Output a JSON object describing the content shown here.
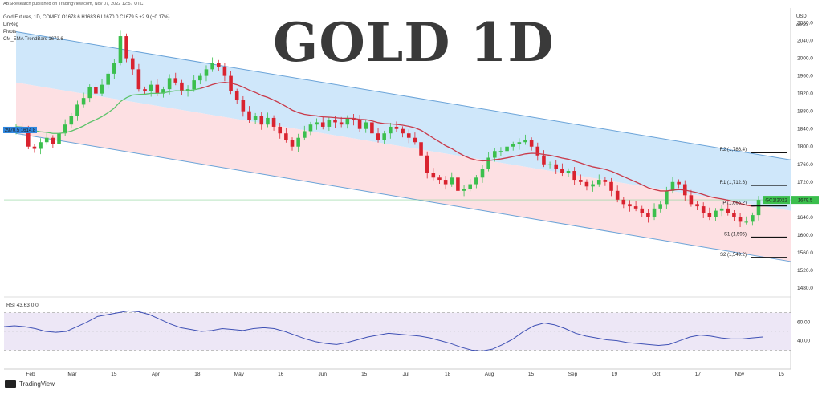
{
  "header": {
    "publisher": "ABSResearch published on TradingView.com, Nov 07, 2022 12:57 UTC",
    "symbol_line": "Gold Futures, 1D, COMEX  O1678.6  H1683.6  L1670.0  C1679.5  +2.9 (+0.17%)",
    "ind1": "LinReg",
    "ind2": "Pivots",
    "ind3": "CM_EMA TrendBars  1672.6"
  },
  "title": "GOLD 1D",
  "currency": "USD",
  "currency_sub": "ΔRKV2",
  "footer_logo": "TradingView",
  "colors": {
    "up": "#26a69a",
    "up_candle": "#3bbf4d",
    "down": "#d9232f",
    "upper_band": "#cfe7fa",
    "lower_band": "#fde0e3",
    "ema": "#5cc36a",
    "reg": "#c93a4a",
    "rsi_line": "#3f51b5",
    "rsi_band": "#ede7f6"
  },
  "chart_data": [
    {
      "type": "candlestick",
      "title": "GOLD 1D",
      "price_axis": [
        "2080.0",
        "2040.0",
        "2000.0",
        "1960.0",
        "1920.0",
        "1880.0",
        "1840.0",
        "1800.0",
        "1760.0",
        "1720.0",
        "1680.0",
        "1640.0",
        "1600.0",
        "1560.0",
        "1520.0",
        "1480.0"
      ],
      "ylim": [
        1460,
        2110
      ],
      "x_labels": [
        "Feb",
        "Mar",
        "15",
        "Apr",
        "18",
        "May",
        "16",
        "Jun",
        "15",
        "Jul",
        "18",
        "Aug",
        "15",
        "Sep",
        "19",
        "Oct",
        "17",
        "Nov",
        "15"
      ],
      "last_price": 1679.5,
      "last_price_label": "1679.5",
      "symbol_tag": "GC1!2022",
      "ema_last": 1672.6,
      "linreg_label": "2970.5 1614.8",
      "pivots": [
        {
          "name": "R2",
          "label": "R2 (1,786.4)",
          "value": 1786.4
        },
        {
          "name": "R1",
          "label": "R1 (1,712.6)",
          "value": 1712.6
        },
        {
          "name": "P",
          "label": "P (1,666.2)",
          "value": 1666.2
        },
        {
          "name": "S1",
          "label": "S1 (1,595)",
          "value": 1595
        },
        {
          "name": "S2",
          "label": "S2 (1,549.2)",
          "value": 1549.2
        }
      ],
      "channel": {
        "upper": [
          2060,
          1770
        ],
        "middle": [
          1945,
          1655
        ],
        "lower": [
          1830,
          1540
        ]
      },
      "closes": [
        1845,
        1835,
        1800,
        1795,
        1810,
        1820,
        1805,
        1830,
        1850,
        1870,
        1895,
        1910,
        1935,
        1920,
        1940,
        1965,
        1990,
        2050,
        2000,
        1975,
        1930,
        1925,
        1940,
        1920,
        1930,
        1955,
        1945,
        1925,
        1930,
        1950,
        1960,
        1975,
        1990,
        1980,
        1960,
        1925,
        1905,
        1880,
        1860,
        1870,
        1850,
        1865,
        1845,
        1830,
        1815,
        1800,
        1820,
        1835,
        1850,
        1855,
        1845,
        1860,
        1855,
        1850,
        1865,
        1860,
        1840,
        1855,
        1830,
        1815,
        1830,
        1845,
        1840,
        1830,
        1820,
        1810,
        1780,
        1740,
        1730,
        1725,
        1715,
        1730,
        1700,
        1705,
        1715,
        1730,
        1750,
        1775,
        1790,
        1790,
        1800,
        1805,
        1810,
        1815,
        1800,
        1780,
        1760,
        1760,
        1750,
        1740,
        1745,
        1725,
        1720,
        1710,
        1715,
        1725,
        1720,
        1700,
        1680,
        1670,
        1665,
        1660,
        1650,
        1640,
        1660,
        1670,
        1700,
        1720,
        1715,
        1690,
        1670,
        1665,
        1650,
        1640,
        1655,
        1660,
        1650,
        1640,
        1630,
        1630,
        1645,
        1679.5
      ],
      "rsi": {
        "label": "RSI  43.63  0  0",
        "value": 43.63,
        "levels": [
          "60.00",
          "40.00"
        ],
        "upper": 70,
        "lower": 30,
        "values": [
          55,
          56,
          55,
          53,
          50,
          49,
          50,
          55,
          60,
          66,
          68,
          70,
          72,
          71,
          68,
          63,
          58,
          54,
          52,
          50,
          51,
          53,
          52,
          51,
          53,
          54,
          53,
          50,
          46,
          42,
          39,
          37,
          36,
          38,
          41,
          44,
          46,
          48,
          47,
          46,
          45,
          43,
          40,
          37,
          33,
          30,
          29,
          31,
          36,
          42,
          50,
          56,
          59,
          57,
          53,
          48,
          45,
          43,
          41,
          40,
          38,
          37,
          36,
          35,
          36,
          40,
          44,
          46,
          45,
          43,
          42,
          42,
          43,
          44
        ]
      }
    }
  ]
}
